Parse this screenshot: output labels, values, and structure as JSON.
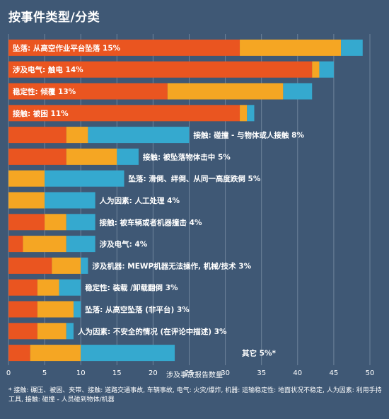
{
  "title": "按事件类型/分类",
  "footnote": "* 接触: 碾压、被困、夹带、接触: 道路交通事故, 车辆事故, 电气: 火灾/爆炸, 机器: 运输稳定性: 地面状况不稳定, 人为因素: 利用手持工具, 接触: 碰撞 - 人员碰到物体/机器",
  "colors": {
    "background": "#3f5875",
    "segment1": "#ea5520",
    "segment2": "#f5a623",
    "segment3": "#35a9cf",
    "grid": "#6e849c"
  },
  "chart_data": {
    "type": "bar",
    "orientation": "horizontal",
    "stacked": true,
    "xlabel": "涉及事故报告数量",
    "xlim": [
      0,
      50
    ],
    "xticks": [
      0,
      5,
      10,
      15,
      20,
      25,
      30,
      35,
      40,
      45,
      50
    ],
    "grid": true,
    "categories": [
      "坠落: 从高空作业平台坠落 15%",
      "涉及电气: 触电 14%",
      "稳定性: 倾覆 13%",
      "接触: 被困 11%",
      "接触: 碰撞 - 与物体或人接触 8%",
      "接触: 被坠落物体击中 5%",
      "坠落: 滑倒、绊倒、从同一高度跌倒 5%",
      "人为因素: 人工处理 4%",
      "接触: 被车辆或者机器撞击 4%",
      "涉及电气: 4%",
      "涉及机器: MEWP机器无法操作, 机械/技术 3%",
      "稳定性: 装载 /卸载翻倒 3%",
      "坠落: 从高空坠落 (非平台) 3%",
      "人为因素: 不安全的情况 (在评论中描述) 3%",
      "其它 5%*"
    ],
    "series": [
      {
        "values": [
          32,
          42,
          22,
          32,
          8,
          8,
          0,
          0,
          5,
          2,
          6,
          4,
          4,
          4,
          3
        ]
      },
      {
        "values": [
          14,
          1,
          16,
          1,
          3,
          7,
          5,
          5,
          3,
          6,
          4,
          3,
          5,
          4,
          7
        ]
      },
      {
        "values": [
          3,
          2,
          4,
          1,
          14,
          3,
          11,
          7,
          4,
          4,
          1,
          3,
          1,
          1,
          13
        ]
      }
    ]
  }
}
